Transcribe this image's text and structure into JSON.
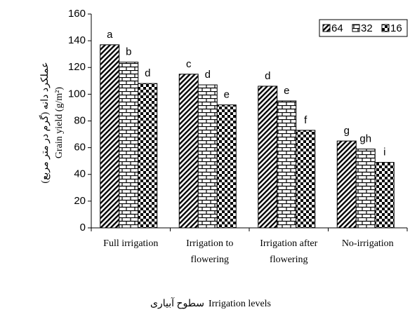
{
  "chart_data": {
    "type": "bar",
    "x_label": [
      "سطوح آبیاری",
      "Irrigation levels"
    ],
    "y_label": [
      "عملکرد دانه (گرم در متر مربع)",
      "Grain yield (g/m²)"
    ],
    "categories": [
      [
        "Full irrigation"
      ],
      [
        "Irrigation to",
        "flowering"
      ],
      [
        "Irrigation after",
        "flowering"
      ],
      [
        "No-irrigation"
      ]
    ],
    "series": [
      {
        "name": "64",
        "color": "#000000",
        "pattern": "diagonal",
        "values": [
          137,
          115,
          106,
          65
        ],
        "letters": [
          "a",
          "c",
          "d",
          "g"
        ]
      },
      {
        "name": "32",
        "color": "#000000",
        "pattern": "brick",
        "values": [
          124,
          107,
          95,
          59
        ],
        "letters": [
          "b",
          "d",
          "e",
          "gh"
        ]
      },
      {
        "name": "16",
        "color": "#000000",
        "pattern": "checker",
        "values": [
          108,
          92,
          73,
          49
        ],
        "letters": [
          "d",
          "e",
          "f",
          "i"
        ]
      }
    ],
    "ylim": [
      0,
      160
    ],
    "yticks": [
      0,
      20,
      40,
      60,
      80,
      100,
      120,
      140,
      160
    ],
    "legend": "top-right",
    "grid": false
  }
}
